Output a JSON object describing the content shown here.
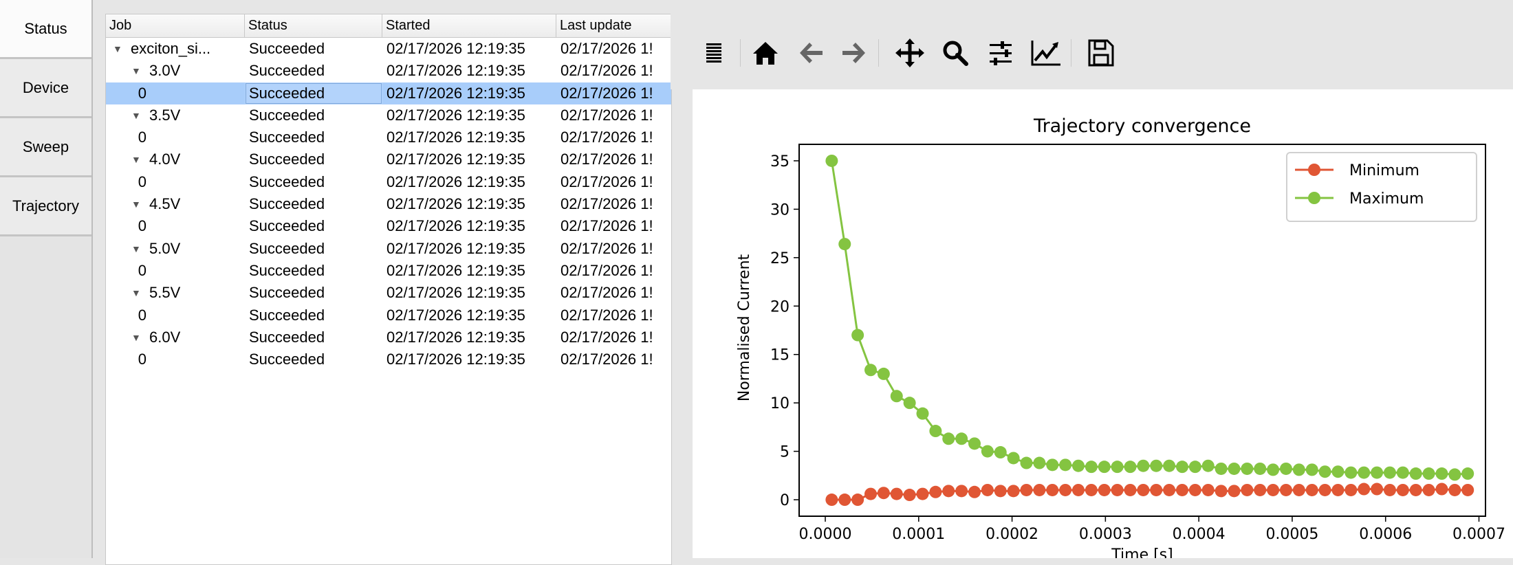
{
  "tabs": [
    {
      "label": "Status",
      "active": true
    },
    {
      "label": "Device"
    },
    {
      "label": "Sweep"
    },
    {
      "label": "Trajectory"
    }
  ],
  "tree": {
    "columns": [
      "Job",
      "Status",
      "Started",
      "Last update"
    ],
    "rows": [
      {
        "job": "exciton_si...",
        "level": 0,
        "expanded": true,
        "status": "Succeeded",
        "started": "02/17/2026 12:19:35",
        "last_update": "02/17/2026 1!"
      },
      {
        "job": "3.0V",
        "level": 1,
        "expanded": true,
        "status": "Succeeded",
        "started": "02/17/2026 12:19:35",
        "last_update": "02/17/2026 1!"
      },
      {
        "job": "0",
        "level": 2,
        "selected": true,
        "status": "Succeeded",
        "started": "02/17/2026 12:19:35",
        "last_update": "02/17/2026 1!"
      },
      {
        "job": "3.5V",
        "level": 1,
        "expanded": true,
        "status": "Succeeded",
        "started": "02/17/2026 12:19:35",
        "last_update": "02/17/2026 1!"
      },
      {
        "job": "0",
        "level": 2,
        "status": "Succeeded",
        "started": "02/17/2026 12:19:35",
        "last_update": "02/17/2026 1!"
      },
      {
        "job": "4.0V",
        "level": 1,
        "expanded": true,
        "status": "Succeeded",
        "started": "02/17/2026 12:19:35",
        "last_update": "02/17/2026 1!"
      },
      {
        "job": "0",
        "level": 2,
        "status": "Succeeded",
        "started": "02/17/2026 12:19:35",
        "last_update": "02/17/2026 1!"
      },
      {
        "job": "4.5V",
        "level": 1,
        "expanded": true,
        "status": "Succeeded",
        "started": "02/17/2026 12:19:35",
        "last_update": "02/17/2026 1!"
      },
      {
        "job": "0",
        "level": 2,
        "status": "Succeeded",
        "started": "02/17/2026 12:19:35",
        "last_update": "02/17/2026 1!"
      },
      {
        "job": "5.0V",
        "level": 1,
        "expanded": true,
        "status": "Succeeded",
        "started": "02/17/2026 12:19:35",
        "last_update": "02/17/2026 1!"
      },
      {
        "job": "0",
        "level": 2,
        "status": "Succeeded",
        "started": "02/17/2026 12:19:35",
        "last_update": "02/17/2026 1!"
      },
      {
        "job": "5.5V",
        "level": 1,
        "expanded": true,
        "status": "Succeeded",
        "started": "02/17/2026 12:19:35",
        "last_update": "02/17/2026 1!"
      },
      {
        "job": "0",
        "level": 2,
        "status": "Succeeded",
        "started": "02/17/2026 12:19:35",
        "last_update": "02/17/2026 1!"
      },
      {
        "job": "6.0V",
        "level": 1,
        "expanded": true,
        "status": "Succeeded",
        "started": "02/17/2026 12:19:35",
        "last_update": "02/17/2026 1!"
      },
      {
        "job": "0",
        "level": 2,
        "status": "Succeeded",
        "started": "02/17/2026 12:19:35",
        "last_update": "02/17/2026 1!"
      }
    ]
  },
  "toolbar": {
    "icons": [
      "menu-icon",
      "home-icon",
      "back-icon",
      "forward-icon",
      "pan-icon",
      "zoom-icon",
      "configure-subplots-icon",
      "edit-axis-icon",
      "save-icon"
    ]
  },
  "chart_data": {
    "type": "line",
    "title": "Trajectory convergence",
    "xlabel": "Time [s]",
    "ylabel": "Normalised Current",
    "xlim": [
      -2.8e-05,
      0.000707
    ],
    "ylim": [
      -1.7,
      36.7
    ],
    "xticks": [
      "0.0000",
      "0.0001",
      "0.0002",
      "0.0003",
      "0.0004",
      "0.0005",
      "0.0006",
      "0.0007"
    ],
    "yticks": [
      "0",
      "5",
      "10",
      "15",
      "20",
      "25",
      "30",
      "35"
    ],
    "grid": false,
    "legend": "top-right",
    "x_start": 6.9e-06,
    "x_step": 1.39e-05,
    "series": [
      {
        "name": "Minimum",
        "color": "#e05634",
        "values": [
          0,
          0,
          0,
          0.6,
          0.7,
          0.6,
          0.5,
          0.6,
          0.8,
          0.9,
          0.9,
          0.8,
          1.0,
          0.9,
          0.9,
          1.0,
          1.0,
          1.0,
          1.0,
          1.0,
          1.0,
          1.0,
          1.0,
          1.0,
          1.0,
          1.0,
          1.0,
          1.0,
          1.0,
          1.0,
          0.9,
          0.9,
          1.0,
          1.0,
          1.0,
          1.0,
          1.0,
          1.0,
          1.0,
          1.0,
          1.0,
          1.1,
          1.1,
          1.0,
          1.0,
          1.0,
          1.0,
          1.1,
          1.0,
          1.0
        ]
      },
      {
        "name": "Maximum",
        "color": "#84c441",
        "values": [
          35,
          26.4,
          17.0,
          13.4,
          13.0,
          10.7,
          10.0,
          8.9,
          7.1,
          6.3,
          6.3,
          5.8,
          5.0,
          4.9,
          4.3,
          3.8,
          3.8,
          3.6,
          3.6,
          3.5,
          3.4,
          3.4,
          3.4,
          3.4,
          3.5,
          3.5,
          3.5,
          3.4,
          3.4,
          3.5,
          3.2,
          3.2,
          3.2,
          3.2,
          3.1,
          3.2,
          3.1,
          3.1,
          2.9,
          2.9,
          2.8,
          2.8,
          2.8,
          2.8,
          2.8,
          2.7,
          2.7,
          2.7,
          2.6,
          2.7
        ]
      }
    ]
  }
}
